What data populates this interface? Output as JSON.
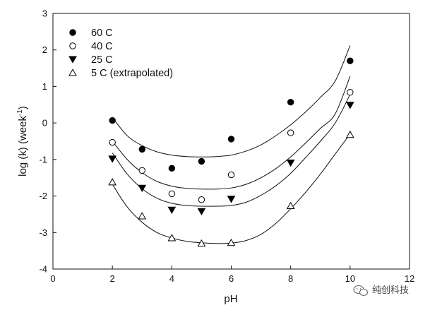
{
  "chart_data": {
    "type": "scatter",
    "xlabel": "pH",
    "ylabel_main": "log (k) (week",
    "ylabel_sup": "-1",
    "ylabel_close": ")",
    "xlim": [
      0,
      12
    ],
    "ylim": [
      -4,
      3
    ],
    "xticks": [
      0,
      2,
      4,
      6,
      8,
      10,
      12
    ],
    "yticks": [
      -4,
      -3,
      -2,
      -1,
      0,
      1,
      2,
      3
    ],
    "grid": false,
    "legend_position": "top-left",
    "series": [
      {
        "name": "60 C",
        "marker": "filled-circle",
        "points": [
          [
            2,
            0.07
          ],
          [
            3,
            -0.72
          ],
          [
            4,
            -1.24
          ],
          [
            5,
            -1.05
          ],
          [
            6,
            -0.44
          ],
          [
            8,
            0.57
          ],
          [
            10,
            1.7
          ]
        ],
        "fit": [
          [
            2,
            0.15
          ],
          [
            2.5,
            -0.35
          ],
          [
            3,
            -0.62
          ],
          [
            3.5,
            -0.79
          ],
          [
            4,
            -0.88
          ],
          [
            4.5,
            -0.92
          ],
          [
            5,
            -0.93
          ],
          [
            5.5,
            -0.92
          ],
          [
            6,
            -0.88
          ],
          [
            6.5,
            -0.77
          ],
          [
            7,
            -0.6
          ],
          [
            7.5,
            -0.35
          ],
          [
            8,
            -0.05
          ],
          [
            8.5,
            0.3
          ],
          [
            9,
            0.7
          ],
          [
            9.5,
            1.15
          ],
          [
            10,
            2.12
          ]
        ]
      },
      {
        "name": "40 C",
        "marker": "open-circle",
        "points": [
          [
            2,
            -0.53
          ],
          [
            3,
            -1.3
          ],
          [
            4,
            -1.94
          ],
          [
            5,
            -2.1
          ],
          [
            6,
            -1.42
          ],
          [
            8,
            -0.27
          ],
          [
            10,
            0.84
          ]
        ],
        "fit": [
          [
            2,
            -0.5
          ],
          [
            2.5,
            -1.0
          ],
          [
            3,
            -1.36
          ],
          [
            3.5,
            -1.6
          ],
          [
            4,
            -1.73
          ],
          [
            4.5,
            -1.79
          ],
          [
            5,
            -1.81
          ],
          [
            5.5,
            -1.81
          ],
          [
            6,
            -1.78
          ],
          [
            6.5,
            -1.68
          ],
          [
            7,
            -1.5
          ],
          [
            7.5,
            -1.25
          ],
          [
            8,
            -0.93
          ],
          [
            8.5,
            -0.55
          ],
          [
            9,
            -0.15
          ],
          [
            9.5,
            0.25
          ],
          [
            10,
            1.28
          ]
        ]
      },
      {
        "name": "25 C",
        "marker": "filled-triangle-down",
        "points": [
          [
            2,
            -0.98
          ],
          [
            3,
            -1.78
          ],
          [
            4,
            -2.38
          ],
          [
            5,
            -2.42
          ],
          [
            6,
            -2.08
          ],
          [
            8,
            -1.09
          ],
          [
            10,
            0.49
          ]
        ],
        "fit": [
          [
            2,
            -0.82
          ],
          [
            2.5,
            -1.4
          ],
          [
            3,
            -1.8
          ],
          [
            3.5,
            -2.06
          ],
          [
            4,
            -2.2
          ],
          [
            4.5,
            -2.26
          ],
          [
            5,
            -2.28
          ],
          [
            5.5,
            -2.28
          ],
          [
            6,
            -2.26
          ],
          [
            6.5,
            -2.17
          ],
          [
            7,
            -1.98
          ],
          [
            7.5,
            -1.72
          ],
          [
            8,
            -1.38
          ],
          [
            8.5,
            -0.95
          ],
          [
            9,
            -0.5
          ],
          [
            9.5,
            0.0
          ],
          [
            10,
            0.78
          ]
        ]
      },
      {
        "name": "5 C (extrapolated)",
        "marker": "open-triangle-up",
        "points": [
          [
            2,
            -1.62
          ],
          [
            3,
            -2.55
          ],
          [
            4,
            -3.15
          ],
          [
            5,
            -3.3
          ],
          [
            6,
            -3.28
          ],
          [
            8,
            -2.27
          ],
          [
            10,
            -0.32
          ]
        ],
        "fit": [
          [
            2,
            -1.68
          ],
          [
            2.5,
            -2.3
          ],
          [
            3,
            -2.72
          ],
          [
            3.5,
            -3.0
          ],
          [
            4,
            -3.15
          ],
          [
            4.5,
            -3.24
          ],
          [
            5,
            -3.28
          ],
          [
            5.5,
            -3.3
          ],
          [
            6,
            -3.29
          ],
          [
            6.5,
            -3.22
          ],
          [
            7,
            -3.05
          ],
          [
            7.5,
            -2.75
          ],
          [
            8,
            -2.35
          ],
          [
            8.5,
            -1.9
          ],
          [
            9,
            -1.4
          ],
          [
            9.5,
            -0.85
          ],
          [
            10,
            -0.3
          ]
        ]
      }
    ]
  },
  "watermark": {
    "text": "纯创科技",
    "icon": "wechat-icon"
  }
}
